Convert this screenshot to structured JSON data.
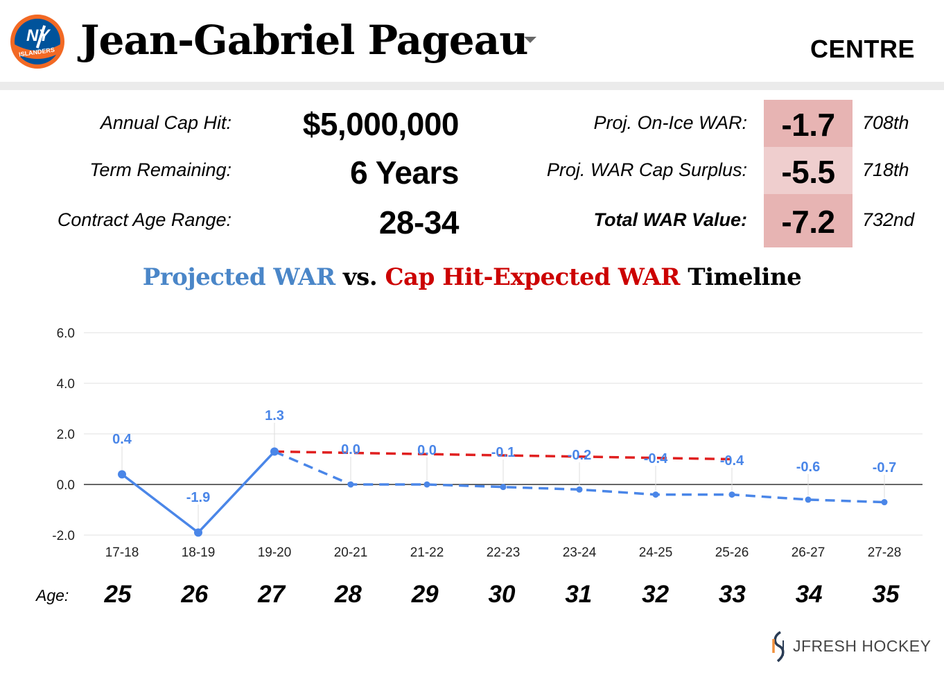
{
  "header": {
    "player_name": "Jean-Gabriel Pageau",
    "position": "CENTRE",
    "logo_text": "NY ISLANDERS"
  },
  "contract": {
    "cap_hit_label": "Annual Cap Hit:",
    "cap_hit_value": "$5,000,000",
    "term_label": "Term Remaining:",
    "term_value": "6 Years",
    "age_range_label": "Contract Age Range:",
    "age_range_value": "28-34"
  },
  "war": {
    "onice_label": "Proj. On-Ice WAR:",
    "onice_value": "-1.7",
    "onice_rank": "708th",
    "surplus_label": "Proj. WAR Cap Surplus:",
    "surplus_value": "-5.5",
    "surplus_rank": "718th",
    "total_label": "Total WAR Value:",
    "total_value": "-7.2",
    "total_rank": "732nd"
  },
  "chart_title": {
    "part1": "Projected WAR",
    "part2": " vs. ",
    "part3": "Cap Hit-Expected WAR",
    "part4": " Timeline"
  },
  "chart_data": {
    "type": "line",
    "categories": [
      "17-18",
      "18-19",
      "19-20",
      "20-21",
      "21-22",
      "22-23",
      "23-24",
      "24-25",
      "25-26",
      "26-27",
      "27-28"
    ],
    "ylim": [
      -2.0,
      6.0
    ],
    "yticks": [
      "-2.0",
      "0.0",
      "2.0",
      "4.0",
      "6.0"
    ],
    "series": [
      {
        "kind": "actual",
        "color": "#4a86e8",
        "values": [
          0.4,
          -1.9,
          1.3,
          null,
          null,
          null,
          null,
          null,
          null,
          null,
          null
        ]
      },
      {
        "kind": "projected",
        "color": "#4a86e8",
        "values": [
          null,
          null,
          1.3,
          0.0,
          0.0,
          -0.1,
          -0.2,
          -0.4,
          -0.4,
          -0.6,
          -0.7
        ]
      },
      {
        "kind": "cap-expected",
        "color": "#e02020",
        "values": [
          null,
          null,
          1.3,
          1.25,
          1.2,
          1.15,
          1.1,
          1.05,
          1.0,
          null,
          null
        ]
      }
    ],
    "data_labels": [
      "0.4",
      "-1.9",
      "1.3",
      "0.0",
      "0.0",
      "-0.1",
      "-0.2",
      "-0.4",
      "-0.4",
      "-0.6",
      "-0.7"
    ],
    "grid": true
  },
  "ages": {
    "label": "Age:",
    "values": [
      "25",
      "26",
      "27",
      "28",
      "29",
      "30",
      "31",
      "32",
      "33",
      "34",
      "35"
    ]
  },
  "brand": {
    "name": "JFRESH HOCKEY"
  },
  "colors": {
    "war_cell_dark": "#e7b4b3",
    "war_cell_light": "#efcece",
    "blue": "#4a86e8",
    "red": "#e02020"
  }
}
